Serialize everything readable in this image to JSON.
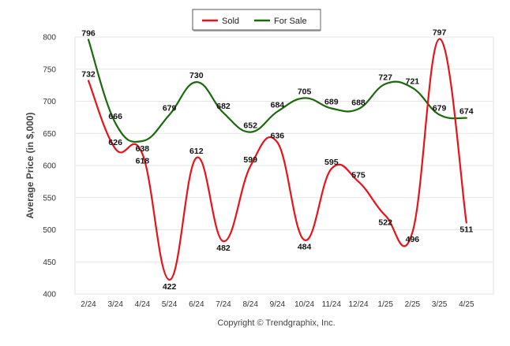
{
  "chart_data": {
    "type": "line",
    "title": "",
    "xlabel": "",
    "ylabel": "Average Price (in $,000)",
    "ylim": [
      400,
      800
    ],
    "yticks": [
      400,
      450,
      500,
      550,
      600,
      650,
      700,
      750,
      800
    ],
    "grid": "horizontal",
    "legend_position": "top-center",
    "categories": [
      "2/24",
      "3/24",
      "4/24",
      "5/24",
      "6/24",
      "7/24",
      "8/24",
      "9/24",
      "10/24",
      "11/24",
      "12/24",
      "1/25",
      "2/25",
      "3/25",
      "4/25"
    ],
    "series": [
      {
        "name": "Sold",
        "color": "#e8131a",
        "values": [
          732,
          626,
          618,
          422,
          612,
          482,
          599,
          636,
          484,
          595,
          575,
          522,
          496,
          797,
          511
        ]
      },
      {
        "name": "For Sale",
        "color": "#1a6a0c",
        "values": [
          796,
          666,
          638,
          679,
          730,
          682,
          652,
          684,
          705,
          689,
          688,
          727,
          721,
          679,
          674
        ]
      }
    ],
    "footer": "Copyright © Trendgraphix, Inc."
  }
}
